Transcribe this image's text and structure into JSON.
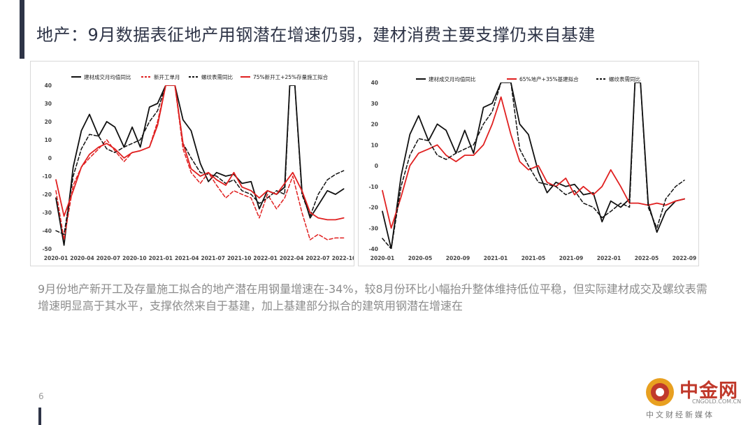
{
  "header": {
    "title": "地产：9月数据表征地产用钢潜在增速仍弱，建材消费主要支撑仍来自基建"
  },
  "summary": {
    "text": "9月份地产新开工及存量施工拟合的地产潜在用钢量增速在-34%，较8月份环比小幅抬升整体维持低位平稳，但实际建材成交及螺纹表需增速明显高于其水平，支撑依然来自于基建，加上基建部分拟合的建筑用钢潜在增速在"
  },
  "footer": {
    "page_number": "6"
  },
  "watermark": {
    "name": "中金网",
    "url": "CNGOLD.COM.CN",
    "sub": "中文财经新媒体"
  },
  "colors": {
    "black": "#111111",
    "red": "#e02020",
    "title": "#2e3447"
  },
  "chart_data": [
    {
      "type": "line",
      "title": "",
      "ylim": [
        -50,
        40
      ],
      "yticks": [
        40,
        30,
        20,
        10,
        0,
        -10,
        -20,
        -30,
        -40,
        -50
      ],
      "xlim": [
        2020.0,
        2022.833
      ],
      "xtick_labels": [
        "2020-01",
        "2020-04",
        "2020-07",
        "2020-10",
        "2021-01",
        "2021-04",
        "2021-07",
        "2021-10",
        "2022-01",
        "2022-04",
        "2022-07",
        "2022-10"
      ],
      "series": [
        {
          "name": "建材成交月均值同比",
          "color": "#111111",
          "dash": "solid",
          "points": [
            [
              2020.0,
              -22
            ],
            [
              2020.08,
              -48
            ],
            [
              2020.17,
              -5
            ],
            [
              2020.25,
              15
            ],
            [
              2020.33,
              24
            ],
            [
              2020.42,
              12
            ],
            [
              2020.5,
              20
            ],
            [
              2020.58,
              17
            ],
            [
              2020.67,
              6
            ],
            [
              2020.75,
              17
            ],
            [
              2020.83,
              6
            ],
            [
              2020.92,
              28
            ],
            [
              2021.0,
              30
            ],
            [
              2021.08,
              40
            ],
            [
              2021.17,
              40
            ],
            [
              2021.25,
              21
            ],
            [
              2021.33,
              15
            ],
            [
              2021.42,
              -3
            ],
            [
              2021.5,
              -13
            ],
            [
              2021.58,
              -8
            ],
            [
              2021.67,
              -10
            ],
            [
              2021.75,
              -9
            ],
            [
              2021.83,
              -14
            ],
            [
              2021.92,
              -13
            ],
            [
              2022.0,
              -28
            ],
            [
              2022.08,
              -18
            ],
            [
              2022.17,
              -20
            ],
            [
              2022.25,
              -16
            ],
            [
              2022.3,
              40
            ],
            [
              2022.35,
              40
            ],
            [
              2022.42,
              -18
            ],
            [
              2022.5,
              -33
            ],
            [
              2022.58,
              -26
            ],
            [
              2022.67,
              -18
            ],
            [
              2022.75,
              -20
            ],
            [
              2022.83,
              -17
            ]
          ]
        },
        {
          "name": "新开工单月",
          "color": "#e02020",
          "dash": "dash",
          "points": [
            [
              2020.0,
              -18
            ],
            [
              2020.08,
              -45
            ],
            [
              2020.17,
              -15
            ],
            [
              2020.25,
              -5
            ],
            [
              2020.33,
              0
            ],
            [
              2020.42,
              5
            ],
            [
              2020.5,
              10
            ],
            [
              2020.58,
              4
            ],
            [
              2020.67,
              -2
            ],
            [
              2020.75,
              3
            ],
            [
              2020.83,
              4
            ],
            [
              2020.92,
              6
            ],
            [
              2021.0,
              20
            ],
            [
              2021.08,
              40
            ],
            [
              2021.17,
              40
            ],
            [
              2021.25,
              5
            ],
            [
              2021.33,
              -8
            ],
            [
              2021.42,
              -14
            ],
            [
              2021.5,
              -8
            ],
            [
              2021.58,
              -15
            ],
            [
              2021.67,
              -22
            ],
            [
              2021.75,
              -18
            ],
            [
              2021.83,
              -20
            ],
            [
              2021.92,
              -22
            ],
            [
              2022.0,
              -33
            ],
            [
              2022.08,
              -20
            ],
            [
              2022.17,
              -28
            ],
            [
              2022.25,
              -22
            ],
            [
              2022.33,
              -10
            ],
            [
              2022.42,
              -30
            ],
            [
              2022.5,
              -45
            ],
            [
              2022.58,
              -42
            ],
            [
              2022.67,
              -45
            ],
            [
              2022.75,
              -44
            ],
            [
              2022.83,
              -44
            ]
          ]
        },
        {
          "name": "螺纹表需同比",
          "color": "#111111",
          "dash": "dash",
          "points": [
            [
              2020.0,
              -40
            ],
            [
              2020.08,
              -42
            ],
            [
              2020.17,
              -10
            ],
            [
              2020.25,
              5
            ],
            [
              2020.33,
              13
            ],
            [
              2020.42,
              12
            ],
            [
              2020.5,
              5
            ],
            [
              2020.58,
              3
            ],
            [
              2020.67,
              6
            ],
            [
              2020.75,
              8
            ],
            [
              2020.83,
              10
            ],
            [
              2020.92,
              20
            ],
            [
              2021.0,
              26
            ],
            [
              2021.08,
              40
            ],
            [
              2021.17,
              40
            ],
            [
              2021.25,
              8
            ],
            [
              2021.33,
              0
            ],
            [
              2021.42,
              -8
            ],
            [
              2021.5,
              -9
            ],
            [
              2021.58,
              -10
            ],
            [
              2021.67,
              -14
            ],
            [
              2021.75,
              -12
            ],
            [
              2021.83,
              -18
            ],
            [
              2021.92,
              -20
            ],
            [
              2022.0,
              -25
            ],
            [
              2022.08,
              -22
            ],
            [
              2022.17,
              -18
            ],
            [
              2022.25,
              -20
            ],
            [
              2022.3,
              40
            ],
            [
              2022.35,
              40
            ],
            [
              2022.42,
              -20
            ],
            [
              2022.5,
              -32
            ],
            [
              2022.58,
              -20
            ],
            [
              2022.67,
              -12
            ],
            [
              2022.75,
              -9
            ],
            [
              2022.83,
              -7
            ]
          ]
        },
        {
          "name": "75%新开工+25%存量施工拟合",
          "color": "#e02020",
          "dash": "solid",
          "points": [
            [
              2020.0,
              -12
            ],
            [
              2020.08,
              -32
            ],
            [
              2020.17,
              -18
            ],
            [
              2020.25,
              -5
            ],
            [
              2020.33,
              2
            ],
            [
              2020.42,
              6
            ],
            [
              2020.5,
              8
            ],
            [
              2020.58,
              5
            ],
            [
              2020.67,
              0
            ],
            [
              2020.75,
              3
            ],
            [
              2020.83,
              4
            ],
            [
              2020.92,
              6
            ],
            [
              2021.0,
              18
            ],
            [
              2021.08,
              40
            ],
            [
              2021.17,
              40
            ],
            [
              2021.25,
              8
            ],
            [
              2021.33,
              -6
            ],
            [
              2021.42,
              -10
            ],
            [
              2021.5,
              -8
            ],
            [
              2021.58,
              -12
            ],
            [
              2021.67,
              -15
            ],
            [
              2021.75,
              -8
            ],
            [
              2021.83,
              -16
            ],
            [
              2021.92,
              -18
            ],
            [
              2022.0,
              -22
            ],
            [
              2022.08,
              -18
            ],
            [
              2022.17,
              -20
            ],
            [
              2022.25,
              -14
            ],
            [
              2022.33,
              -8
            ],
            [
              2022.42,
              -18
            ],
            [
              2022.5,
              -30
            ],
            [
              2022.58,
              -33
            ],
            [
              2022.67,
              -34
            ],
            [
              2022.75,
              -34
            ],
            [
              2022.83,
              -33
            ]
          ]
        }
      ]
    },
    {
      "type": "line",
      "title": "",
      "ylim": [
        -40,
        40
      ],
      "yticks": [
        40,
        30,
        20,
        10,
        0,
        -10,
        -20,
        -30,
        -40
      ],
      "xlim": [
        2020.0,
        2022.75
      ],
      "xtick_labels": [
        "2020-01",
        "2020-05",
        "2020-09",
        "2021-01",
        "2021-05",
        "2021-09",
        "2022-01",
        "2022-05",
        "2022-09"
      ],
      "series": [
        {
          "name": "建材成交月均值同比",
          "color": "#111111",
          "dash": "solid",
          "points": [
            [
              2020.0,
              -22
            ],
            [
              2020.08,
              -40
            ],
            [
              2020.17,
              -5
            ],
            [
              2020.25,
              15
            ],
            [
              2020.33,
              24
            ],
            [
              2020.42,
              12
            ],
            [
              2020.5,
              20
            ],
            [
              2020.58,
              17
            ],
            [
              2020.67,
              6
            ],
            [
              2020.75,
              17
            ],
            [
              2020.83,
              6
            ],
            [
              2020.92,
              28
            ],
            [
              2021.0,
              30
            ],
            [
              2021.08,
              40
            ],
            [
              2021.17,
              40
            ],
            [
              2021.25,
              20
            ],
            [
              2021.33,
              15
            ],
            [
              2021.42,
              -3
            ],
            [
              2021.5,
              -13
            ],
            [
              2021.58,
              -8
            ],
            [
              2021.67,
              -10
            ],
            [
              2021.75,
              -9
            ],
            [
              2021.83,
              -14
            ],
            [
              2021.92,
              -13
            ],
            [
              2022.0,
              -27
            ],
            [
              2022.08,
              -17
            ],
            [
              2022.17,
              -20
            ],
            [
              2022.25,
              -16
            ],
            [
              2022.3,
              40
            ],
            [
              2022.35,
              40
            ],
            [
              2022.42,
              -18
            ],
            [
              2022.5,
              -32
            ],
            [
              2022.58,
              -22
            ],
            [
              2022.67,
              -17
            ],
            [
              2022.75,
              -16
            ]
          ]
        },
        {
          "name": "65%地产+35%基建拟合",
          "color": "#e02020",
          "dash": "solid",
          "points": [
            [
              2020.0,
              -12
            ],
            [
              2020.08,
              -30
            ],
            [
              2020.17,
              -15
            ],
            [
              2020.25,
              0
            ],
            [
              2020.33,
              6
            ],
            [
              2020.42,
              8
            ],
            [
              2020.5,
              10
            ],
            [
              2020.58,
              5
            ],
            [
              2020.67,
              2
            ],
            [
              2020.75,
              5
            ],
            [
              2020.83,
              5
            ],
            [
              2020.92,
              10
            ],
            [
              2021.0,
              20
            ],
            [
              2021.08,
              33
            ],
            [
              2021.17,
              15
            ],
            [
              2021.25,
              2
            ],
            [
              2021.33,
              -2
            ],
            [
              2021.42,
              0
            ],
            [
              2021.5,
              -8
            ],
            [
              2021.58,
              -10
            ],
            [
              2021.67,
              -6
            ],
            [
              2021.75,
              -14
            ],
            [
              2021.83,
              -10
            ],
            [
              2021.92,
              -14
            ],
            [
              2022.0,
              -10
            ],
            [
              2022.08,
              -2
            ],
            [
              2022.17,
              -10
            ],
            [
              2022.25,
              -18
            ],
            [
              2022.33,
              -18
            ],
            [
              2022.42,
              -19
            ],
            [
              2022.5,
              -18
            ],
            [
              2022.58,
              -19
            ],
            [
              2022.67,
              -17
            ],
            [
              2022.75,
              -16
            ]
          ]
        },
        {
          "name": "螺纹表需同比",
          "color": "#111111",
          "dash": "dash",
          "points": [
            [
              2020.0,
              -35
            ],
            [
              2020.08,
              -40
            ],
            [
              2020.17,
              -10
            ],
            [
              2020.25,
              5
            ],
            [
              2020.33,
              13
            ],
            [
              2020.42,
              12
            ],
            [
              2020.5,
              5
            ],
            [
              2020.58,
              3
            ],
            [
              2020.67,
              6
            ],
            [
              2020.75,
              8
            ],
            [
              2020.83,
              10
            ],
            [
              2020.92,
              20
            ],
            [
              2021.0,
              26
            ],
            [
              2021.08,
              40
            ],
            [
              2021.17,
              40
            ],
            [
              2021.25,
              8
            ],
            [
              2021.33,
              0
            ],
            [
              2021.42,
              -8
            ],
            [
              2021.5,
              -9
            ],
            [
              2021.58,
              -10
            ],
            [
              2021.67,
              -14
            ],
            [
              2021.75,
              -12
            ],
            [
              2021.83,
              -18
            ],
            [
              2021.92,
              -20
            ],
            [
              2022.0,
              -25
            ],
            [
              2022.08,
              -22
            ],
            [
              2022.17,
              -18
            ],
            [
              2022.25,
              -20
            ],
            [
              2022.3,
              40
            ],
            [
              2022.35,
              40
            ],
            [
              2022.42,
              -20
            ],
            [
              2022.5,
              -30
            ],
            [
              2022.58,
              -16
            ],
            [
              2022.67,
              -10
            ],
            [
              2022.75,
              -7
            ]
          ]
        }
      ]
    }
  ]
}
